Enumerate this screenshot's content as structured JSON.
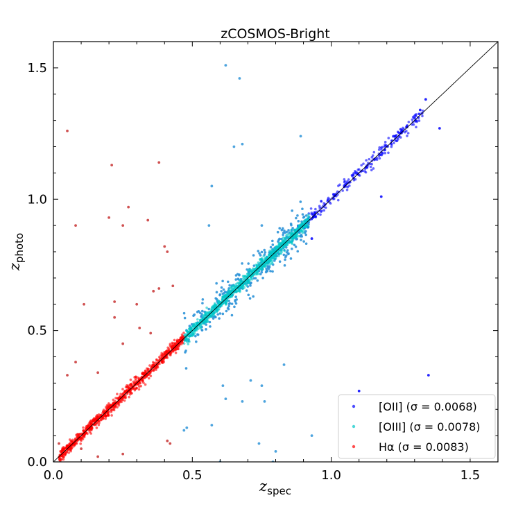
{
  "chart_data": {
    "type": "scatter",
    "title": "zCOSMOS-Bright",
    "xlabel": "z",
    "xlabel_sub": "spec",
    "ylabel": "z",
    "ylabel_sub": "photo",
    "xlim": [
      0.0,
      1.6
    ],
    "ylim": [
      0.0,
      1.6
    ],
    "x_ticks": [
      0.0,
      0.5,
      1.0,
      1.5
    ],
    "y_ticks": [
      0.0,
      0.5,
      1.0,
      1.5
    ],
    "x_tick_labels": [
      "0.0",
      "0.5",
      "1.0",
      "1.5"
    ],
    "y_tick_labels": [
      "0.0",
      "0.5",
      "1.0",
      "1.5"
    ],
    "grid": false,
    "legend_position": "lower-right",
    "reference_line": {
      "x": [
        0.0,
        1.6
      ],
      "y": [
        0.0,
        1.6
      ],
      "color": "#000000"
    },
    "series": [
      {
        "name": "[OII] (σ = 0.0068)",
        "color": "#0000ff",
        "range": [
          0.88,
          1.33
        ],
        "outliers": [
          [
            1.34,
            1.38
          ],
          [
            1.32,
            1.34
          ],
          [
            1.39,
            1.27
          ],
          [
            1.18,
            1.01
          ],
          [
            1.1,
            0.27
          ],
          [
            1.35,
            0.33
          ],
          [
            1.23,
            1.24
          ],
          [
            0.93,
            0.85
          ]
        ]
      },
      {
        "name": "[OIII] (σ = 0.0078)",
        "color": "#00c8c8",
        "range": [
          0.47,
          0.92
        ],
        "outliers": [
          [
            0.62,
            1.51
          ],
          [
            0.67,
            1.46
          ],
          [
            0.65,
            1.2
          ],
          [
            0.68,
            1.21
          ],
          [
            0.57,
            1.05
          ],
          [
            0.89,
            1.24
          ],
          [
            0.56,
            0.9
          ],
          [
            0.75,
            0.9
          ],
          [
            0.75,
            0.29
          ],
          [
            0.76,
            0.23
          ],
          [
            0.71,
            0.31
          ],
          [
            0.61,
            0.29
          ],
          [
            0.62,
            0.24
          ],
          [
            0.57,
            0.14
          ],
          [
            0.83,
            0.37
          ],
          [
            0.8,
            0.04
          ],
          [
            0.74,
            0.07
          ],
          [
            0.93,
            0.1
          ],
          [
            0.47,
            0.12
          ],
          [
            0.48,
            0.13
          ],
          [
            0.68,
            0.23
          ],
          [
            0.6,
            0.0
          ],
          [
            0.79,
            0.0
          ]
        ]
      },
      {
        "name": "Hα (σ = 0.0083)",
        "color": "#ff0000",
        "range": [
          0.02,
          0.47
        ],
        "outliers": [
          [
            0.05,
            1.26
          ],
          [
            0.21,
            1.13
          ],
          [
            0.38,
            1.14
          ],
          [
            0.27,
            0.97
          ],
          [
            0.2,
            0.93
          ],
          [
            0.25,
            0.9
          ],
          [
            0.34,
            0.92
          ],
          [
            0.08,
            0.9
          ],
          [
            0.4,
            0.82
          ],
          [
            0.41,
            0.8
          ],
          [
            0.43,
            0.67
          ],
          [
            0.38,
            0.66
          ],
          [
            0.36,
            0.65
          ],
          [
            0.11,
            0.6
          ],
          [
            0.22,
            0.61
          ],
          [
            0.3,
            0.6
          ],
          [
            0.22,
            0.55
          ],
          [
            0.31,
            0.51
          ],
          [
            0.05,
            0.33
          ],
          [
            0.16,
            0.34
          ],
          [
            0.08,
            0.38
          ],
          [
            0.35,
            0.49
          ],
          [
            0.25,
            0.45
          ],
          [
            0.41,
            0.08
          ],
          [
            0.42,
            0.07
          ],
          [
            0.02,
            0.07
          ],
          [
            0.1,
            0.05
          ],
          [
            0.16,
            0.02
          ],
          [
            0.25,
            0.03
          ]
        ]
      }
    ]
  }
}
